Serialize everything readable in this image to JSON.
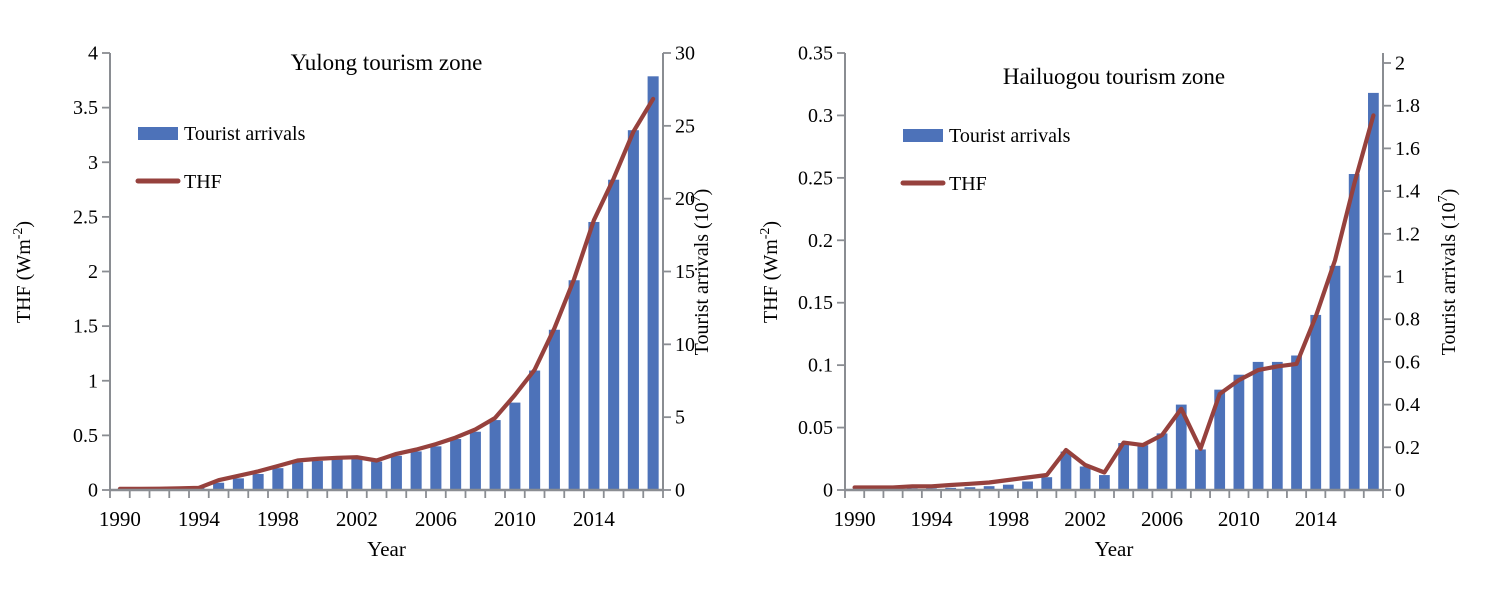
{
  "figure": {
    "background": "#ffffff"
  },
  "colors": {
    "bar": "#4D72B9",
    "line": "#96413D",
    "axis": "#8A8D92",
    "text": "#000000"
  },
  "chart_data": [
    {
      "type": "bar+line",
      "title": "Yulong tourism zone",
      "xlabel": "Year",
      "ylabel_left": {
        "pre": "THF (Wm",
        "sup": "-2",
        "post": ")"
      },
      "ylabel_right": {
        "pre": "Tourist arrivals (10",
        "sup": "7",
        "post": ")"
      },
      "legend": [
        {
          "label": "Tourist arrivals",
          "swatch": "bar"
        },
        {
          "label": "THF",
          "swatch": "line"
        }
      ],
      "x": [
        1990,
        1991,
        1992,
        1993,
        1994,
        1995,
        1996,
        1997,
        1998,
        1999,
        2000,
        2001,
        2002,
        2003,
        2004,
        2005,
        2006,
        2007,
        2008,
        2009,
        2010,
        2011,
        2012,
        2013,
        2014,
        2015,
        2016,
        2017
      ],
      "x_tick_labels": [
        "1990",
        "1994",
        "1998",
        "2002",
        "2006",
        "2010",
        "2014"
      ],
      "x_tick_years": [
        1990,
        1994,
        1998,
        2002,
        2006,
        2010,
        2014
      ],
      "series": [
        {
          "name": "Tourist arrivals",
          "type": "bar",
          "axis": "right",
          "values": [
            0.05,
            0.06,
            0.08,
            0.1,
            0.15,
            0.5,
            0.8,
            1.1,
            1.5,
            1.9,
            2.0,
            2.1,
            2.15,
            1.95,
            2.35,
            2.65,
            3.0,
            3.5,
            4.0,
            4.8,
            6.0,
            8.2,
            11.0,
            14.4,
            18.4,
            21.3,
            24.7,
            28.4
          ]
        },
        {
          "name": "THF",
          "type": "line",
          "axis": "left",
          "values": [
            0.01,
            0.01,
            0.012,
            0.015,
            0.02,
            0.09,
            0.13,
            0.17,
            0.22,
            0.27,
            0.285,
            0.295,
            0.3,
            0.27,
            0.33,
            0.37,
            0.42,
            0.48,
            0.555,
            0.66,
            0.87,
            1.1,
            1.48,
            1.93,
            2.47,
            2.85,
            3.28,
            3.58
          ]
        }
      ],
      "left_axis": {
        "tick_labels": [
          "0",
          "0.5",
          "1",
          "1.5",
          "2",
          "2.5",
          "3",
          "3.5",
          "4"
        ],
        "tick_values": [
          0,
          0.5,
          1,
          1.5,
          2,
          2.5,
          3,
          3.5,
          4
        ],
        "min": 0,
        "max": 4
      },
      "right_axis": {
        "tick_labels": [
          "0",
          "5",
          "10",
          "15",
          "20",
          "25",
          "30"
        ],
        "tick_values": [
          0,
          5,
          10,
          15,
          20,
          25,
          30
        ],
        "min": 0,
        "max": 30
      },
      "grid": false,
      "legend_position": "upper-left-inside"
    },
    {
      "type": "bar+line",
      "title": "Hailuogou tourism zone",
      "xlabel": "Year",
      "ylabel_left": {
        "pre": "THF (Wm",
        "sup": "-2",
        "post": ")"
      },
      "ylabel_right": {
        "pre": "Tourist arrivals (10",
        "sup": "7",
        "post": ")"
      },
      "legend": [
        {
          "label": "Tourist arrivals",
          "swatch": "bar"
        },
        {
          "label": "THF",
          "swatch": "line"
        }
      ],
      "x": [
        1990,
        1991,
        1992,
        1993,
        1994,
        1995,
        1996,
        1997,
        1998,
        1999,
        2000,
        2001,
        2002,
        2003,
        2004,
        2005,
        2006,
        2007,
        2008,
        2009,
        2010,
        2011,
        2012,
        2013,
        2014,
        2015,
        2016,
        2017
      ],
      "x_tick_labels": [
        "1990",
        "1994",
        "1998",
        "2002",
        "2006",
        "2010",
        "2014"
      ],
      "x_tick_years": [
        1990,
        1994,
        1998,
        2002,
        2006,
        2010,
        2014
      ],
      "series": [
        {
          "name": "Tourist arrivals",
          "type": "bar",
          "axis": "right",
          "values": [
            0.005,
            0.005,
            0.006,
            0.007,
            0.008,
            0.01,
            0.013,
            0.018,
            0.025,
            0.04,
            0.06,
            0.18,
            0.11,
            0.07,
            0.22,
            0.21,
            0.265,
            0.4,
            0.19,
            0.47,
            0.54,
            0.6,
            0.6,
            0.63,
            0.82,
            1.05,
            1.48,
            1.86
          ]
        },
        {
          "name": "THF",
          "type": "line",
          "axis": "left",
          "values": [
            0.002,
            0.002,
            0.002,
            0.003,
            0.003,
            0.004,
            0.005,
            0.006,
            0.008,
            0.01,
            0.012,
            0.032,
            0.02,
            0.014,
            0.038,
            0.036,
            0.044,
            0.065,
            0.033,
            0.077,
            0.088,
            0.096,
            0.099,
            0.101,
            0.139,
            0.184,
            0.245,
            0.3
          ]
        }
      ],
      "left_axis": {
        "tick_labels": [
          "0",
          "0.05",
          "0.1",
          "0.15",
          "0.2",
          "0.25",
          "0.3",
          "0.35"
        ],
        "tick_values": [
          0,
          0.05,
          0.1,
          0.15,
          0.2,
          0.25,
          0.3,
          0.35
        ],
        "min": 0,
        "max": 0.35
      },
      "right_axis": {
        "tick_labels": [
          "0",
          "0.2",
          "0.4",
          "0.6",
          "0.8",
          "1",
          "1.2",
          "1.4",
          "1.6",
          "1.8",
          "2"
        ],
        "tick_values": [
          0,
          0.2,
          0.4,
          0.6,
          0.8,
          1,
          1.2,
          1.4,
          1.6,
          1.8,
          2
        ],
        "min": 0,
        "max": 2
      },
      "grid": false,
      "legend_position": "upper-left-inside"
    }
  ]
}
